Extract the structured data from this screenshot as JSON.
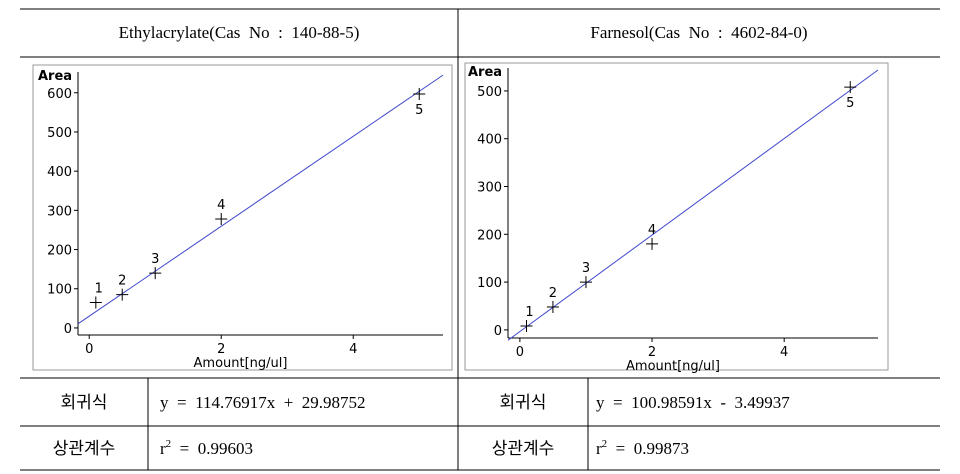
{
  "table": {
    "headers": [
      "Ethylacrylate(Cas  No  :  140-88-5)",
      "Farnesol(Cas  No  :  4602-84-0)"
    ],
    "rows": [
      [
        "회귀식",
        "y  =  114.76917x  +  29.98752",
        "회귀식",
        "y  =  100.98591x  -  3.49937"
      ],
      [
        "상관계수",
        {
          "base": "r",
          "sup": "2",
          "rest": "  =  0.99603"
        },
        "상관계수",
        {
          "base": "r",
          "sup": "2",
          "rest": "  =  0.99873"
        }
      ]
    ]
  },
  "chart_data": [
    {
      "type": "scatter",
      "y_label": "Area",
      "x_label": "Amount[ng/ul]",
      "x": [
        0.1,
        0.5,
        1,
        2,
        5
      ],
      "values": [
        65,
        85,
        140,
        278,
        597
      ],
      "point_labels": [
        "1",
        "2",
        "3",
        "4",
        "5"
      ],
      "fit": {
        "x": [
          -0.17,
          5.36
        ],
        "values": [
          10.5,
          645
        ],
        "color": "#3f48cc"
      },
      "xlim": [
        -0.17,
        5.36
      ],
      "ylim": [
        -18,
        653
      ],
      "xticks": [
        0,
        2,
        4
      ],
      "yticks": [
        0,
        100,
        200,
        300,
        400,
        500,
        600
      ]
    },
    {
      "type": "scatter",
      "y_label": "Area",
      "x_label": "Amount[ng/ul]",
      "x": [
        0.1,
        0.5,
        1,
        2,
        5
      ],
      "values": [
        8,
        48,
        100,
        180,
        508
      ],
      "point_labels": [
        "1",
        "2",
        "3",
        "4",
        "5"
      ],
      "fit": {
        "x": [
          -0.18,
          5.42
        ],
        "values": [
          -21.7,
          543.8
        ],
        "color": "#3f48cc"
      },
      "xlim": [
        -0.18,
        5.42
      ],
      "ylim": [
        -17,
        548
      ],
      "xticks": [
        0,
        2,
        4
      ],
      "yticks": [
        0,
        100,
        200,
        300,
        400,
        500
      ]
    }
  ]
}
